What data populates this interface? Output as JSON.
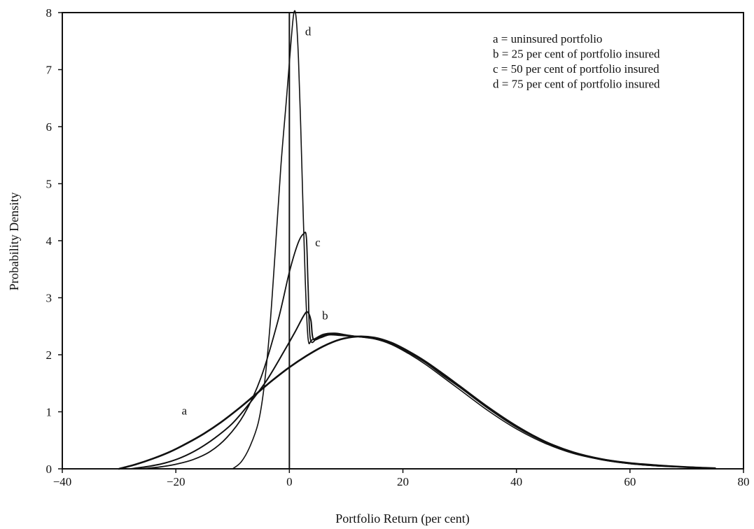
{
  "chart_data": {
    "type": "line",
    "title": "",
    "xlabel": "Portfolio Return (per cent)",
    "ylabel": "Probability Density",
    "xlim": [
      -40,
      80
    ],
    "ylim": [
      0,
      8
    ],
    "x_ticks": [
      -40,
      -20,
      0,
      20,
      40,
      60,
      80
    ],
    "x_tick_labels": [
      "−40",
      "−20",
      "0",
      "20",
      "40",
      "60",
      "80"
    ],
    "y_ticks": [
      0,
      1,
      2,
      3,
      4,
      5,
      6,
      7,
      8
    ],
    "y_tick_labels": [
      "0",
      "1",
      "2",
      "3",
      "4",
      "5",
      "6",
      "7",
      "8"
    ],
    "grid": false,
    "vertical_reference_line_x": 0,
    "legend_placement": "top-right",
    "legend": [
      "a = uninsured portfolio",
      "b = 25 per cent of portfolio insured",
      "c = 50 per cent of portfolio insured",
      "d = 75 per cent of portfolio insured"
    ],
    "series": [
      {
        "name": "a",
        "x": [
          -30,
          -27,
          -24,
          -21,
          -18,
          -15,
          -12,
          -9,
          -6,
          -3,
          0,
          3,
          6,
          9,
          12,
          15,
          18,
          21,
          24,
          27,
          30,
          35,
          40,
          45,
          50,
          55,
          60,
          65,
          70,
          75
        ],
        "y": [
          0.0,
          0.08,
          0.18,
          0.3,
          0.45,
          0.62,
          0.82,
          1.05,
          1.3,
          1.55,
          1.78,
          1.98,
          2.15,
          2.27,
          2.32,
          2.3,
          2.21,
          2.06,
          1.88,
          1.67,
          1.45,
          1.08,
          0.75,
          0.48,
          0.29,
          0.17,
          0.1,
          0.06,
          0.03,
          0.01
        ]
      },
      {
        "name": "b",
        "x": [
          -28,
          -25,
          -22,
          -19,
          -16,
          -13,
          -10,
          -7,
          -4,
          -1,
          1,
          2.5,
          3.2,
          3.8,
          4.2,
          5.5,
          7,
          9,
          12,
          15,
          18,
          21,
          24,
          27,
          30,
          35,
          40,
          45,
          50,
          55,
          60,
          65,
          70,
          75
        ],
        "y": [
          0.0,
          0.04,
          0.1,
          0.2,
          0.35,
          0.55,
          0.8,
          1.15,
          1.55,
          2.05,
          2.4,
          2.68,
          2.75,
          2.6,
          2.28,
          2.3,
          2.35,
          2.34,
          2.32,
          2.28,
          2.19,
          2.05,
          1.87,
          1.66,
          1.45,
          1.08,
          0.75,
          0.48,
          0.29,
          0.17,
          0.1,
          0.06,
          0.03,
          0.01
        ]
      },
      {
        "name": "c",
        "x": [
          -26,
          -23,
          -20,
          -17,
          -14,
          -11,
          -8,
          -5,
          -2,
          0,
          1.5,
          2.5,
          3.0,
          3.3,
          3.7,
          5,
          7,
          9,
          12,
          15,
          18,
          21,
          24,
          27,
          30,
          35,
          40,
          45,
          50,
          55,
          60,
          65,
          70,
          75
        ],
        "y": [
          0.0,
          0.03,
          0.08,
          0.16,
          0.3,
          0.55,
          0.95,
          1.6,
          2.6,
          3.45,
          3.95,
          4.12,
          4.05,
          3.2,
          2.28,
          2.3,
          2.37,
          2.35,
          2.32,
          2.28,
          2.19,
          2.04,
          1.86,
          1.64,
          1.43,
          1.06,
          0.73,
          0.47,
          0.28,
          0.16,
          0.09,
          0.05,
          0.03,
          0.01
        ]
      },
      {
        "name": "d",
        "x": [
          -10,
          -8.5,
          -7,
          -5.5,
          -4.5,
          -3.5,
          -2.5,
          -1.5,
          -0.5,
          0.3,
          0.8,
          1.2,
          1.6,
          2.0,
          2.4,
          2.8,
          3.3,
          4,
          6,
          8,
          10,
          12,
          15,
          18,
          21,
          24,
          27,
          30,
          35,
          40,
          45,
          50,
          55,
          60,
          65,
          70,
          75
        ],
        "y": [
          0.0,
          0.12,
          0.38,
          0.8,
          1.4,
          2.4,
          3.8,
          5.3,
          6.5,
          7.5,
          8.0,
          7.9,
          7.2,
          6.0,
          4.6,
          3.3,
          2.28,
          2.26,
          2.36,
          2.38,
          2.35,
          2.32,
          2.28,
          2.18,
          2.02,
          1.83,
          1.61,
          1.39,
          1.02,
          0.7,
          0.45,
          0.27,
          0.16,
          0.09,
          0.05,
          0.03,
          0.01
        ]
      }
    ],
    "curve_labels": [
      {
        "text": "a",
        "x": -18.5,
        "y": 0.95
      },
      {
        "text": "b",
        "x": 6.3,
        "y": 2.62
      },
      {
        "text": "c",
        "x": 5.0,
        "y": 3.9
      },
      {
        "text": "d",
        "x": 3.3,
        "y": 7.6
      }
    ]
  }
}
